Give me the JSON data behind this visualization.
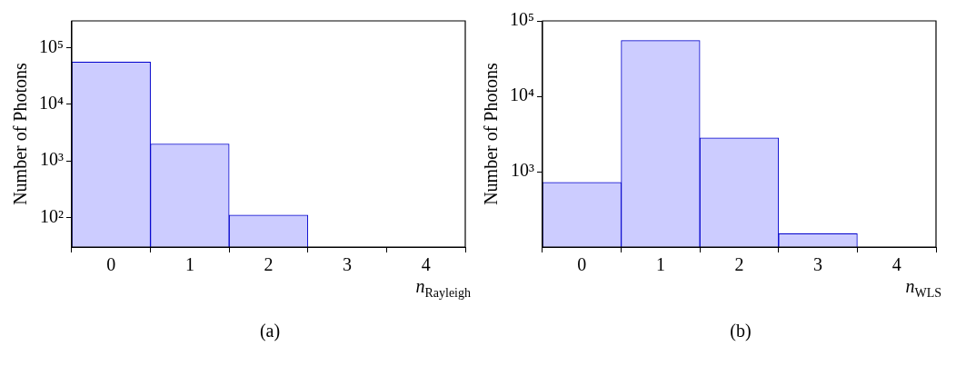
{
  "chart_data": [
    {
      "type": "histogram",
      "xlabel": "n$_{Rayleigh}$",
      "ylabel": "Number of Photons",
      "bins": [
        -0.5,
        0.5,
        1.5,
        2.5,
        3.5,
        4.5
      ],
      "values": [
        56000,
        2000,
        110,
        null,
        null
      ],
      "color": "#ccccff",
      "xlim": [
        -0.5,
        4.5
      ],
      "xticks": [
        0,
        1,
        2,
        3,
        4
      ],
      "ylim": [
        30,
        300000
      ],
      "yticks": [
        {
          "value": 100,
          "label": "10²"
        },
        {
          "value": 1000,
          "label": "10³"
        },
        {
          "value": 10000,
          "label": "10⁴"
        },
        {
          "value": 100000,
          "label": "10⁵"
        }
      ],
      "log": "y",
      "grid": false,
      "annotations": [
        "(a)"
      ]
    },
    {
      "type": "histogram",
      "xlabel": "n$_{WLS}$",
      "ylabel": "Number of Photons",
      "bins": [
        -0.5,
        0.5,
        1.5,
        2.5,
        3.5,
        4.5
      ],
      "values": [
        720,
        55000,
        2800,
        150,
        null
      ],
      "color": "#ccccff",
      "xlim": [
        -0.5,
        4.5
      ],
      "xticks": [
        0,
        1,
        2,
        3,
        4
      ],
      "ylim": [
        100,
        100000
      ],
      "yticks": [
        {
          "value": 1000,
          "label": "10³"
        },
        {
          "value": 10000,
          "label": "10⁴"
        },
        {
          "value": 100000,
          "label": "10⁵"
        }
      ],
      "log": "y",
      "grid": false,
      "annotations": [
        "(b)"
      ]
    }
  ]
}
